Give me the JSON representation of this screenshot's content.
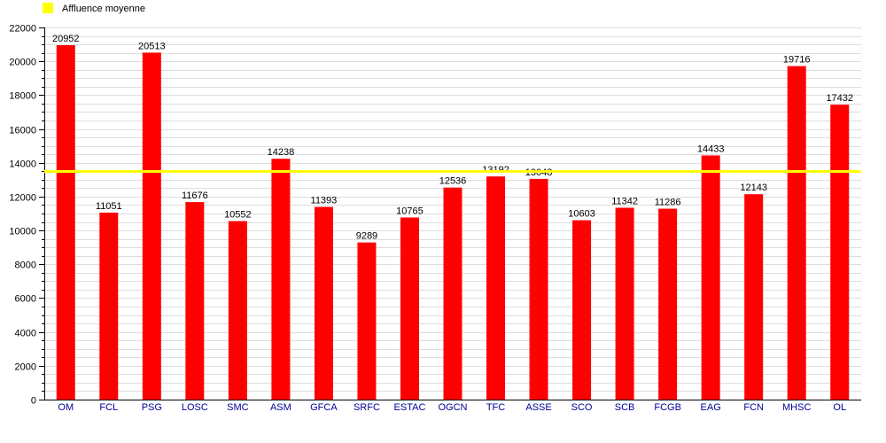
{
  "chart_data": {
    "type": "bar",
    "title": "",
    "xlabel": "",
    "ylabel": "",
    "categories": [
      "OM",
      "FCL",
      "PSG",
      "LOSC",
      "SMC",
      "ASM",
      "GFCA",
      "SRFC",
      "ESTAC",
      "OGCN",
      "TFC",
      "ASSE",
      "SCO",
      "SCB",
      "FCGB",
      "EAG",
      "FCN",
      "MHSC",
      "OL"
    ],
    "values": [
      20952,
      11051,
      20513,
      11676,
      10552,
      14238,
      11393,
      9289,
      10765,
      12536,
      13192,
      13048,
      10603,
      11342,
      11286,
      14433,
      12143,
      19716,
      17432
    ],
    "ylim": [
      0,
      22000
    ],
    "yticks": [
      0,
      2000,
      4000,
      6000,
      8000,
      10000,
      12000,
      14000,
      16000,
      18000,
      20000,
      22000
    ],
    "grid": true,
    "legend_position": "top-left",
    "reference_line": {
      "name": "Affluence moyenne",
      "value": 13487,
      "color": "#ffff00"
    },
    "colors": {
      "bar": "#ff0000",
      "category_label": "#000099",
      "grid": "#dddddd",
      "axis": "#000000"
    }
  }
}
